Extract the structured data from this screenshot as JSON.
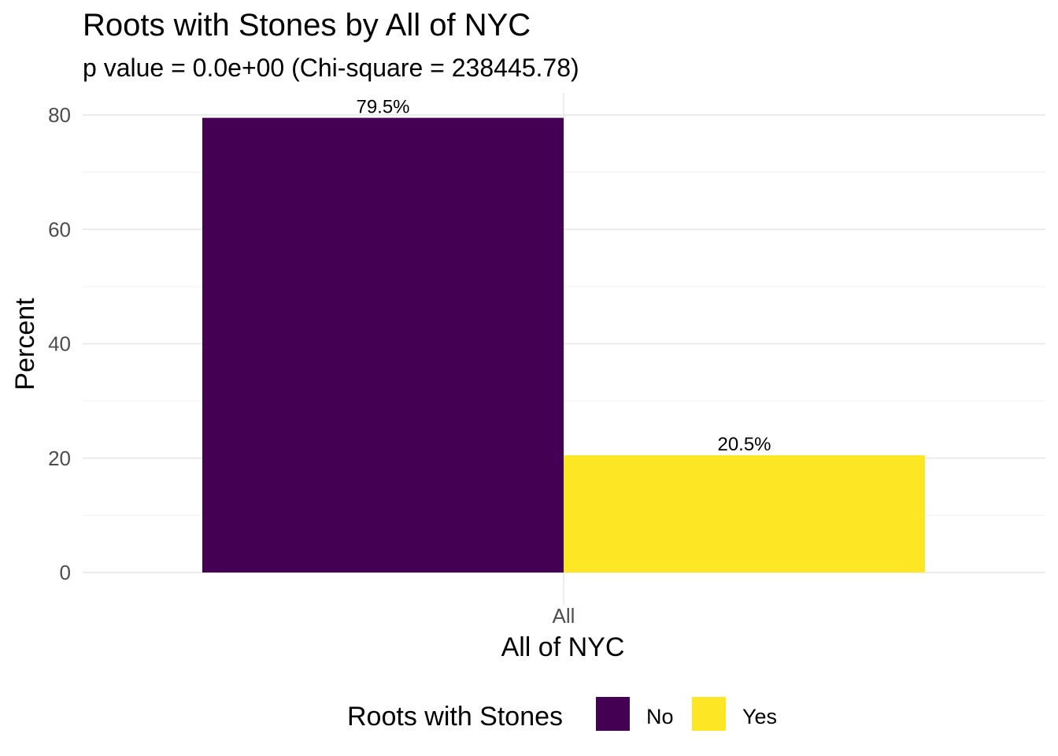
{
  "chart_data": {
    "type": "bar",
    "title": "Roots with Stones by All of NYC",
    "subtitle": "p value = 0.0e+00 (Chi-square = 238445.78)",
    "xlabel": "All of NYC",
    "ylabel": "Percent",
    "categories": [
      "All"
    ],
    "series": [
      {
        "name": "No",
        "values": [
          79.5
        ],
        "label": "79.5%",
        "color": "#440154"
      },
      {
        "name": "Yes",
        "values": [
          20.5
        ],
        "label": "20.5%",
        "color": "#FDE725"
      }
    ],
    "ylim": [
      0,
      82
    ],
    "yticks": [
      0,
      20,
      40,
      60,
      80
    ],
    "grid": true,
    "legend": {
      "title": "Roots with Stones",
      "position": "bottom"
    }
  }
}
